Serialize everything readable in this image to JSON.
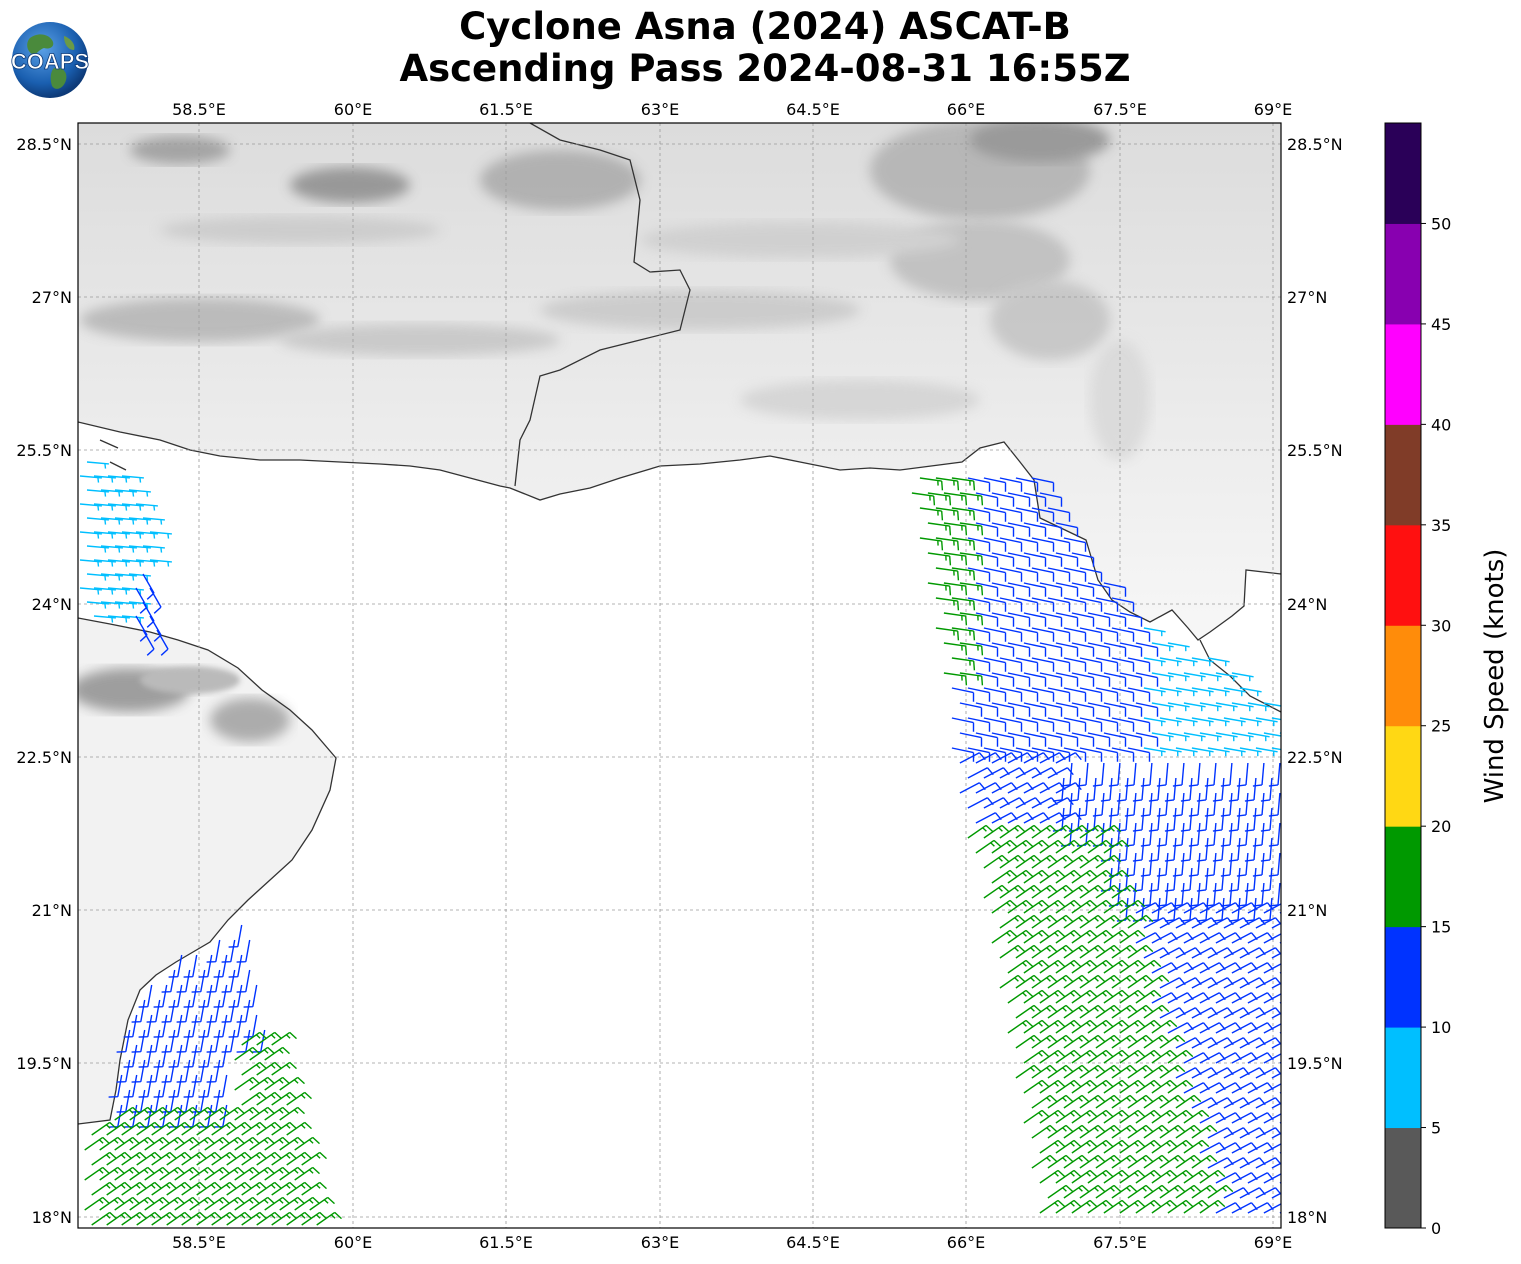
{
  "title": {
    "line1": "Cyclone Asna (2024) ASCAT-B",
    "line2": "Ascending Pass 2024-08-31 16:55Z"
  },
  "logo": {
    "text": "COAPS",
    "icon": "globe-logo-icon"
  },
  "map": {
    "lon_range": [
      57.3,
      69.05
    ],
    "lat_range": [
      17.9,
      28.7
    ],
    "lon_ticks": [
      "58.5°E",
      "60°E",
      "61.5°E",
      "63°E",
      "64.5°E",
      "66°E",
      "67.5°E",
      "69°E"
    ],
    "lat_ticks": [
      "28.5°N",
      "27°N",
      "25.5°N",
      "24°N",
      "22.5°N",
      "21°N",
      "19.5°N",
      "18°N"
    ],
    "gridlines": true,
    "background": "grayscale IR satellite over land"
  },
  "colorbar": {
    "label": "Wind Speed (knots)",
    "ticks": [
      "0",
      "5",
      "10",
      "15",
      "20",
      "25",
      "30",
      "35",
      "40",
      "45",
      "50"
    ],
    "bins": [
      {
        "min": 0,
        "max": 5,
        "color": "#595959"
      },
      {
        "min": 5,
        "max": 10,
        "color": "#00bfff"
      },
      {
        "min": 10,
        "max": 15,
        "color": "#0033ff"
      },
      {
        "min": 15,
        "max": 20,
        "color": "#009900"
      },
      {
        "min": 20,
        "max": 25,
        "color": "#ffd814"
      },
      {
        "min": 25,
        "max": 30,
        "color": "#ff8c0a"
      },
      {
        "min": 30,
        "max": 35,
        "color": "#ff1010"
      },
      {
        "min": 35,
        "max": 40,
        "color": "#803c28"
      },
      {
        "min": 40,
        "max": 45,
        "color": "#ff00ff"
      },
      {
        "min": 45,
        "max": 50,
        "color": "#8800b0"
      },
      {
        "min": 50,
        "max": 55,
        "color": "#2a0058"
      }
    ]
  },
  "colors": {
    "coastline": "#333333",
    "grid": "#9a9a9a",
    "frame": "#000000"
  }
}
